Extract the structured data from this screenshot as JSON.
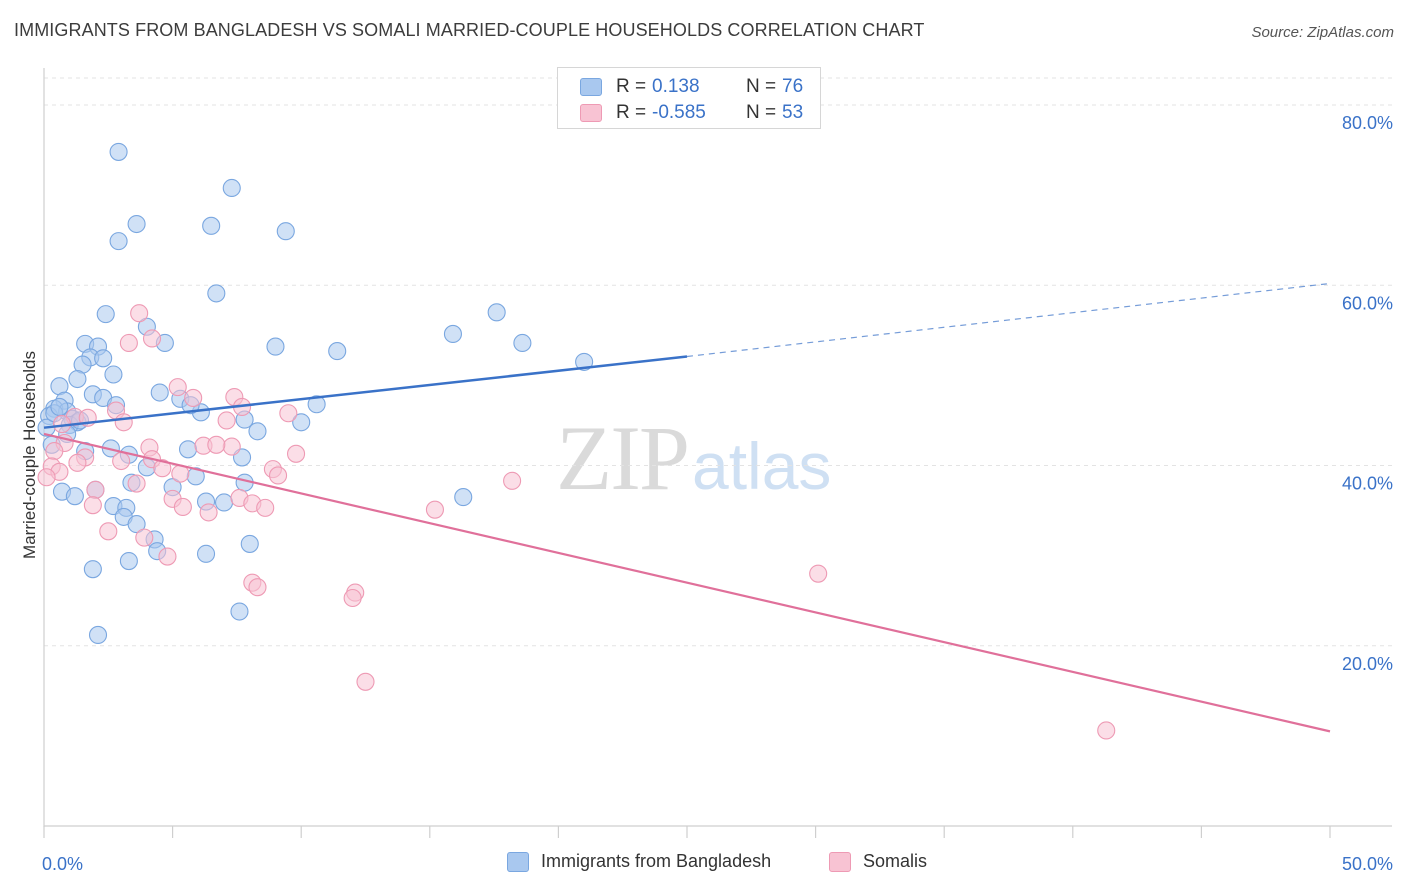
{
  "header": {
    "title": "IMMIGRANTS FROM BANGLADESH VS SOMALI MARRIED-COUPLE HOUSEHOLDS CORRELATION CHART",
    "source": "Source: ZipAtlas.com"
  },
  "watermark": {
    "zip": "ZIP",
    "atlas": "atlas"
  },
  "legend": {
    "rows": [
      {
        "r_label": "R =",
        "r_value": "0.138",
        "n_label": "N =",
        "n_value": "76",
        "color": "#a9c8ef",
        "stroke": "#7aa7e0"
      },
      {
        "r_label": "R =",
        "r_value": "-0.585",
        "n_label": "N =",
        "n_value": "53",
        "color": "#f8c3d3",
        "stroke": "#ee9ab4"
      }
    ],
    "bottom": [
      {
        "label": "Immigrants from Bangladesh",
        "color": "#a9c8ef",
        "stroke": "#7aa7e0"
      },
      {
        "label": "Somalis",
        "color": "#f8c3d3",
        "stroke": "#ee9ab4"
      }
    ]
  },
  "chart_data": {
    "type": "scatter",
    "title": "IMMIGRANTS FROM BANGLADESH VS SOMALI MARRIED-COUPLE HOUSEHOLDS CORRELATION CHART",
    "xlabel": "",
    "ylabel": "Married-couple Households",
    "xlim": [
      0,
      50
    ],
    "ylim": [
      0,
      85
    ],
    "x_tick_labels": [
      "0.0%",
      "50.0%"
    ],
    "y_ticks": [
      20,
      40,
      60,
      80
    ],
    "y_tick_labels": [
      "20.0%",
      "40.0%",
      "60.0%",
      "80.0%"
    ],
    "grid": "horizontal dashed",
    "legend_position": "top-center",
    "series": [
      {
        "name": "Immigrants from Bangladesh",
        "color": "#a9c8ef",
        "stroke": "#7aa7e0",
        "trend_color": "#3a72c8",
        "trend": {
          "x0": 0,
          "y0": 44.2,
          "x1": 25,
          "y1": 52.1,
          "x_end": 50,
          "y_end": 60.2
        },
        "points": [
          [
            2.9,
            74.8
          ],
          [
            7.3,
            70.8
          ],
          [
            3.6,
            66.8
          ],
          [
            6.5,
            66.6
          ],
          [
            9.4,
            66.0
          ],
          [
            2.9,
            64.9
          ],
          [
            6.7,
            59.1
          ],
          [
            17.6,
            57.0
          ],
          [
            2.4,
            56.8
          ],
          [
            4.0,
            55.4
          ],
          [
            15.9,
            54.6
          ],
          [
            1.6,
            53.5
          ],
          [
            2.1,
            53.2
          ],
          [
            4.7,
            53.6
          ],
          [
            9.0,
            53.2
          ],
          [
            18.6,
            53.6
          ],
          [
            11.4,
            52.7
          ],
          [
            1.8,
            52.0
          ],
          [
            2.3,
            51.9
          ],
          [
            1.5,
            51.2
          ],
          [
            21.0,
            51.5
          ],
          [
            2.7,
            50.1
          ],
          [
            1.3,
            49.6
          ],
          [
            0.6,
            48.8
          ],
          [
            4.5,
            48.1
          ],
          [
            1.9,
            47.9
          ],
          [
            5.3,
            47.4
          ],
          [
            0.8,
            47.2
          ],
          [
            2.3,
            47.5
          ],
          [
            2.8,
            46.7
          ],
          [
            10.6,
            46.8
          ],
          [
            0.4,
            46.3
          ],
          [
            0.9,
            46.0
          ],
          [
            6.1,
            45.9
          ],
          [
            0.2,
            45.5
          ],
          [
            1.1,
            45.2
          ],
          [
            1.3,
            44.8
          ],
          [
            7.8,
            45.1
          ],
          [
            1.0,
            44.5
          ],
          [
            10.0,
            44.8
          ],
          [
            0.1,
            44.2
          ],
          [
            0.9,
            43.5
          ],
          [
            8.3,
            43.8
          ],
          [
            0.3,
            42.3
          ],
          [
            2.6,
            41.9
          ],
          [
            5.6,
            41.8
          ],
          [
            1.6,
            41.6
          ],
          [
            3.3,
            41.2
          ],
          [
            7.7,
            40.9
          ],
          [
            4.0,
            39.8
          ],
          [
            5.9,
            38.8
          ],
          [
            7.8,
            38.1
          ],
          [
            3.4,
            38.1
          ],
          [
            5.0,
            37.6
          ],
          [
            0.7,
            37.1
          ],
          [
            2.0,
            37.3
          ],
          [
            1.2,
            36.6
          ],
          [
            6.3,
            36.0
          ],
          [
            7.0,
            35.9
          ],
          [
            2.7,
            35.5
          ],
          [
            16.3,
            36.5
          ],
          [
            3.2,
            35.3
          ],
          [
            3.1,
            34.3
          ],
          [
            3.6,
            33.5
          ],
          [
            4.3,
            31.8
          ],
          [
            8.0,
            31.3
          ],
          [
            4.4,
            30.5
          ],
          [
            6.3,
            30.2
          ],
          [
            3.3,
            29.4
          ],
          [
            1.9,
            28.5
          ],
          [
            7.6,
            23.8
          ],
          [
            2.1,
            21.2
          ],
          [
            0.4,
            45.8
          ],
          [
            1.4,
            45.0
          ],
          [
            0.6,
            46.5
          ],
          [
            5.7,
            46.7
          ]
        ]
      },
      {
        "name": "Somalis",
        "color": "#f8c3d3",
        "stroke": "#ee9ab4",
        "trend_color": "#e0709a",
        "trend": {
          "x0": 0,
          "y0": 43.5,
          "x1": 50,
          "y1": 10.5
        },
        "points": [
          [
            3.7,
            56.9
          ],
          [
            4.2,
            54.1
          ],
          [
            3.3,
            53.6
          ],
          [
            5.2,
            48.7
          ],
          [
            5.8,
            47.5
          ],
          [
            7.4,
            47.6
          ],
          [
            2.8,
            46.1
          ],
          [
            7.7,
            46.5
          ],
          [
            9.5,
            45.8
          ],
          [
            1.2,
            45.4
          ],
          [
            1.7,
            45.3
          ],
          [
            0.7,
            44.6
          ],
          [
            3.1,
            44.8
          ],
          [
            7.1,
            45.0
          ],
          [
            0.8,
            42.5
          ],
          [
            4.1,
            42.0
          ],
          [
            7.3,
            42.1
          ],
          [
            6.2,
            42.2
          ],
          [
            0.4,
            41.6
          ],
          [
            9.8,
            41.3
          ],
          [
            1.6,
            40.9
          ],
          [
            4.2,
            40.7
          ],
          [
            1.3,
            40.3
          ],
          [
            3.0,
            40.5
          ],
          [
            4.6,
            39.7
          ],
          [
            0.3,
            39.9
          ],
          [
            0.6,
            39.3
          ],
          [
            5.3,
            39.1
          ],
          [
            8.9,
            39.6
          ],
          [
            9.1,
            38.9
          ],
          [
            18.2,
            38.3
          ],
          [
            3.6,
            38.0
          ],
          [
            2.0,
            37.3
          ],
          [
            5.0,
            36.3
          ],
          [
            7.6,
            36.4
          ],
          [
            8.1,
            35.8
          ],
          [
            1.9,
            35.6
          ],
          [
            8.6,
            35.3
          ],
          [
            5.4,
            35.4
          ],
          [
            15.2,
            35.1
          ],
          [
            6.4,
            34.8
          ],
          [
            2.5,
            32.7
          ],
          [
            3.9,
            32.0
          ],
          [
            4.8,
            29.9
          ],
          [
            0.1,
            38.7
          ],
          [
            30.1,
            28.0
          ],
          [
            8.1,
            27.0
          ],
          [
            8.3,
            26.5
          ],
          [
            12.1,
            25.9
          ],
          [
            12.0,
            25.3
          ],
          [
            12.5,
            16.0
          ],
          [
            41.3,
            10.6
          ],
          [
            6.7,
            42.3
          ]
        ]
      }
    ]
  }
}
